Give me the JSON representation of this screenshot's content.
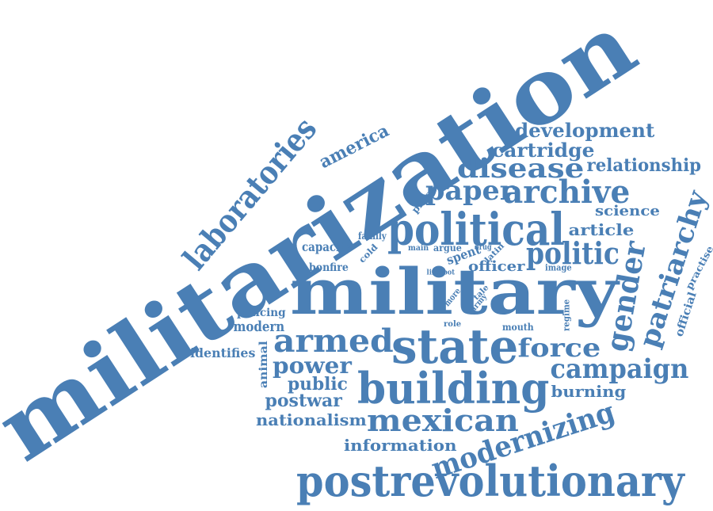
{
  "color": "#4a7fb5",
  "words": [
    {
      "name": "militarization",
      "text": "militarization"
    },
    {
      "name": "postrevolutionary",
      "text": "postrevolutionary"
    },
    {
      "name": "military",
      "text": "military"
    },
    {
      "name": "state",
      "text": "state"
    },
    {
      "name": "building",
      "text": "building"
    },
    {
      "name": "political",
      "text": "political"
    },
    {
      "name": "laboratories",
      "text": "laboratories"
    },
    {
      "name": "armed",
      "text": "armed"
    },
    {
      "name": "mexican",
      "text": "mexican"
    },
    {
      "name": "modernizing",
      "text": "modernizing"
    },
    {
      "name": "archive",
      "text": "archive"
    },
    {
      "name": "paper",
      "text": "paper"
    },
    {
      "name": "disease",
      "text": "disease"
    },
    {
      "name": "politic",
      "text": "politic"
    },
    {
      "name": "gender",
      "text": "gender"
    },
    {
      "name": "patriarchy",
      "text": "patriarchy"
    },
    {
      "name": "campaign",
      "text": "campaign"
    },
    {
      "name": "force",
      "text": "force"
    },
    {
      "name": "power",
      "text": "power"
    },
    {
      "name": "development",
      "text": "development"
    },
    {
      "name": "cartridge",
      "text": "cartridge"
    },
    {
      "name": "relationship",
      "text": "relationship"
    },
    {
      "name": "science",
      "text": "science"
    },
    {
      "name": "article",
      "text": "article"
    },
    {
      "name": "america",
      "text": "america"
    },
    {
      "name": "public",
      "text": "public"
    },
    {
      "name": "postwar",
      "text": "postwar"
    },
    {
      "name": "nationalism",
      "text": "nationalism"
    },
    {
      "name": "information",
      "text": "information"
    },
    {
      "name": "burning",
      "text": "burning"
    },
    {
      "name": "modern",
      "text": "modern"
    },
    {
      "name": "identifies",
      "text": "identifies"
    },
    {
      "name": "capacity",
      "text": "capacity"
    },
    {
      "name": "bonfire",
      "text": "bonfire"
    },
    {
      "name": "officer",
      "text": "officer"
    },
    {
      "name": "policing",
      "text": "policing"
    },
    {
      "name": "official",
      "text": "official"
    },
    {
      "name": "practise",
      "text": "practise"
    },
    {
      "name": "animal",
      "text": "animal"
    },
    {
      "name": "spent",
      "text": "spent"
    },
    {
      "name": "family",
      "text": "family"
    },
    {
      "name": "phase",
      "text": "phase"
    },
    {
      "name": "cold",
      "text": "cold"
    },
    {
      "name": "main",
      "text": "main"
    },
    {
      "name": "argue",
      "text": "argue"
    },
    {
      "name": "drug",
      "text": "drug"
    },
    {
      "name": "latin",
      "text": "latin"
    },
    {
      "name": "tale",
      "text": "tale"
    },
    {
      "name": "image",
      "text": "image"
    },
    {
      "name": "life",
      "text": "life"
    },
    {
      "name": "foot",
      "text": "foot"
    },
    {
      "name": "more",
      "text": "more"
    },
    {
      "name": "army",
      "text": "army"
    },
    {
      "name": "regime",
      "text": "regime"
    },
    {
      "name": "role",
      "text": "role"
    },
    {
      "name": "mouth",
      "text": "mouth"
    }
  ]
}
